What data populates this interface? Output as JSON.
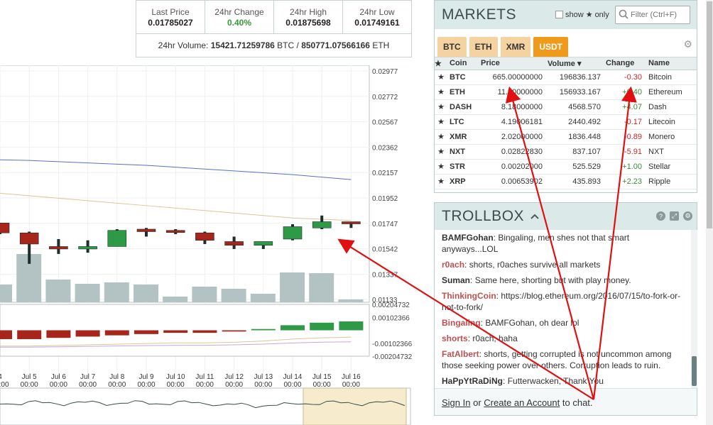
{
  "stats": {
    "items": [
      {
        "label": "Last Price",
        "value": "0.01785027"
      },
      {
        "label": "24hr Change",
        "value": "0.40%"
      },
      {
        "label": "24hr High",
        "value": "0.01875698"
      },
      {
        "label": "24hr Low",
        "value": "0.01749161"
      }
    ],
    "volume_label": "24hr Volume:",
    "volume_btc": "15421.71259786",
    "btc_unit": "BTC",
    "separator": "/",
    "volume_eth": "850771.07566166",
    "eth_unit": "ETH"
  },
  "chart_data": {
    "type": "candlestick",
    "price_axis_ticks": [
      "0.02977",
      "0.02772",
      "0.02567",
      "0.02362",
      "0.02157",
      "0.01952",
      "0.01747",
      "0.01542",
      "0.01337",
      "0.01133"
    ],
    "macd_axis_ticks": [
      "0.00204732",
      "0.00102366",
      "-0.00102366",
      "-0.00204732"
    ],
    "x_ticks": [
      {
        "day": "4",
        "time": "00:00"
      },
      {
        "day": "Jul 5",
        "time": "00:00"
      },
      {
        "day": "Jul 6",
        "time": "00:00"
      },
      {
        "day": "Jul 7",
        "time": "00:00"
      },
      {
        "day": "Jul 8",
        "time": "00:00"
      },
      {
        "day": "Jul 9",
        "time": "00:00"
      },
      {
        "day": "Jul 10",
        "time": "00:00"
      },
      {
        "day": "Jul 11",
        "time": "00:00"
      },
      {
        "day": "Jul 12",
        "time": "00:00"
      },
      {
        "day": "Jul 13",
        "time": "00:00"
      },
      {
        "day": "Jul 14",
        "time": "00:00"
      },
      {
        "day": "Jul 15",
        "time": "00:00"
      },
      {
        "day": "Jul 16",
        "time": "00:00"
      }
    ],
    "candles": [
      {
        "open": 0.0175,
        "close": 0.0167,
        "high": 0.0175,
        "low": 0.0166
      },
      {
        "open": 0.0167,
        "close": 0.0158,
        "high": 0.0168,
        "low": 0.0142
      },
      {
        "open": 0.0156,
        "close": 0.0154,
        "high": 0.0162,
        "low": 0.015
      },
      {
        "open": 0.0154,
        "close": 0.0156,
        "high": 0.0161,
        "low": 0.0151
      },
      {
        "open": 0.0156,
        "close": 0.0169,
        "high": 0.017,
        "low": 0.0156
      },
      {
        "open": 0.017,
        "close": 0.0168,
        "high": 0.0171,
        "low": 0.0164
      },
      {
        "open": 0.0169,
        "close": 0.0168,
        "high": 0.017,
        "low": 0.0166
      },
      {
        "open": 0.0167,
        "close": 0.0161,
        "high": 0.0168,
        "low": 0.0158
      },
      {
        "open": 0.016,
        "close": 0.0157,
        "high": 0.0164,
        "low": 0.0154
      },
      {
        "open": 0.0157,
        "close": 0.016,
        "high": 0.016,
        "low": 0.0154
      },
      {
        "open": 0.0162,
        "close": 0.0172,
        "high": 0.0174,
        "low": 0.0161
      },
      {
        "open": 0.0171,
        "close": 0.0176,
        "high": 0.0181,
        "low": 0.017
      },
      {
        "open": 0.0176,
        "close": 0.0175,
        "high": 0.0176,
        "low": 0.0171
      }
    ],
    "volume_fraction": [
      0.25,
      0.68,
      0.32,
      0.26,
      0.28,
      0.25,
      0.08,
      0.22,
      0.19,
      0.12,
      0.42,
      0.41,
      0.04
    ],
    "macd_hist": [
      -0.0007,
      -0.0007,
      -0.0006,
      -0.0005,
      -0.0004,
      -0.0003,
      -0.0002,
      -0.0002,
      -0.0001,
      0.0001,
      0.0004,
      0.0006,
      0.0007
    ],
    "ma_long": [
      0.0226,
      0.02255,
      0.02245,
      0.02235,
      0.02225,
      0.02215,
      0.022,
      0.02185,
      0.0217,
      0.02155,
      0.0214,
      0.0212,
      0.021
    ],
    "ma_short": [
      0.0199,
      0.0197,
      0.0195,
      0.0193,
      0.0191,
      0.0189,
      0.0187,
      0.0185,
      0.0183,
      0.0181,
      0.0179,
      0.0178,
      0.0177
    ],
    "ylim": [
      0.01133,
      0.02977
    ]
  },
  "markets": {
    "title": "MARKETS",
    "show_label": "show",
    "only_label": "only",
    "filter_placeholder": "Filter (Ctrl+F)",
    "tabs": [
      "BTC",
      "ETH",
      "XMR",
      "USDT"
    ],
    "active_tab": "USDT",
    "columns": [
      "Coin",
      "Price",
      "Volume",
      "Change",
      "Name"
    ],
    "volume_sort_glyph": "▾",
    "rows": [
      {
        "coin": "BTC",
        "price": "665.00000000",
        "volume": "196836.137",
        "change": "-0.30",
        "name": "Bitcoin"
      },
      {
        "coin": "ETH",
        "price": "11.90000000",
        "volume": "156933.167",
        "change": "+0.40",
        "name": "Ethereum"
      },
      {
        "coin": "DASH",
        "price": "8.18000000",
        "volume": "4568.570",
        "change": "+4.07",
        "name": "Dash"
      },
      {
        "coin": "LTC",
        "price": "4.19006181",
        "volume": "2440.492",
        "change": "-0.17",
        "name": "Litecoin"
      },
      {
        "coin": "XMR",
        "price": "2.02000000",
        "volume": "1836.448",
        "change": "-0.89",
        "name": "Monero"
      },
      {
        "coin": "NXT",
        "price": "0.02822830",
        "volume": "837.107",
        "change": "-5.91",
        "name": "NXT"
      },
      {
        "coin": "STR",
        "price": "0.00202000",
        "volume": "525.529",
        "change": "+1.00",
        "name": "Stellar"
      },
      {
        "coin": "XRP",
        "price": "0.00653902",
        "volume": "435.893",
        "change": "+2.23",
        "name": "Ripple"
      }
    ],
    "colors": {
      "positive": "#3a8a3a",
      "negative": "#c62828",
      "active_tab": "#ef9a1a",
      "tab": "#f5d3a1"
    }
  },
  "trollbox": {
    "title": "TROLLBOX",
    "messages": [
      {
        "user": "BAMFGohan",
        "style": "dark",
        "text": "Bingaling, men shes not that smart anyways...LOL"
      },
      {
        "user": "r0ach",
        "style": "red",
        "text": "shorts, r0aches survive all markets"
      },
      {
        "user": "Suman",
        "style": "dark",
        "text": "Same here, shorting but with play money."
      },
      {
        "user": "ThinkingCoin",
        "style": "red",
        "text": "https://blog.ethereum.org/2016/07/15/to-fork-or-not-to-fork/"
      },
      {
        "user": "Bingaling",
        "style": "red",
        "text": "BAMFGohan, oh dear lol"
      },
      {
        "user": "shorts",
        "style": "red",
        "text": "r0ach, haha"
      },
      {
        "user": "FatAlbert",
        "style": "red",
        "text": "shorts, getting corrupted is not uncommon among those seeking power over others. Corruption leads to ruin."
      },
      {
        "user": "HaPpYtRaDiNg",
        "style": "dark",
        "text": "Futterwacken, Thank You"
      }
    ],
    "footer_signin": "Sign In",
    "footer_or": "or",
    "footer_create": "Create an Account",
    "footer_tail": "to chat."
  }
}
